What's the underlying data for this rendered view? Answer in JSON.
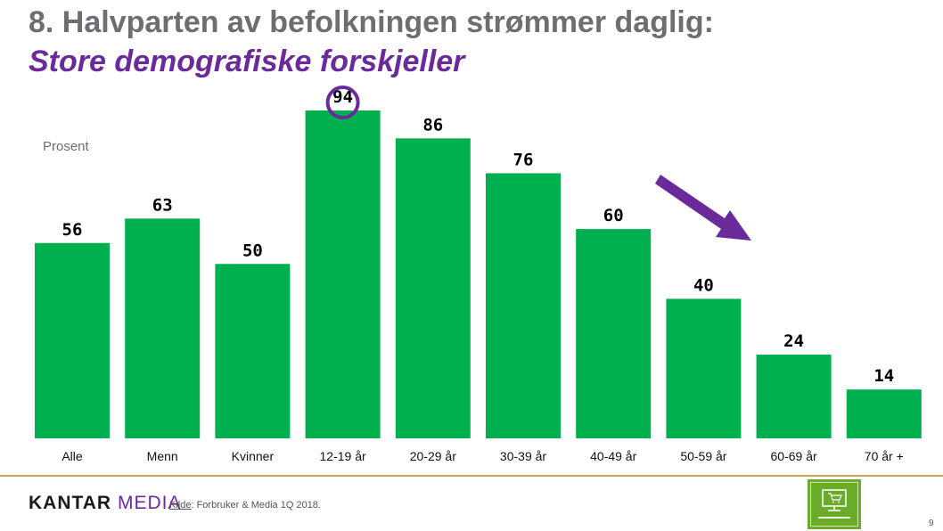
{
  "slide": {
    "title": "8. Halvparten av befolkningen strømmer daglig:",
    "subtitle": "Store demografiske forskjeller",
    "unit_label": "Prosent",
    "page_number": "9"
  },
  "footer": {
    "brand_primary": "KANTAR",
    "brand_secondary": "MEDIA",
    "source_label": "Kilde",
    "source_text": ": Forbruker & Media 1Q 2018.",
    "badge_icon": "monitor-cart-icon"
  },
  "colors": {
    "bar": "#00b04f",
    "highlight": "#6a2a9b",
    "arrow": "#6a2a9b",
    "title": "#6d6e71",
    "subtitle": "#6a2a9b",
    "rule": "#c9a64b",
    "badge": "#6aab2a"
  },
  "chart_data": {
    "type": "bar",
    "categories": [
      "Alle",
      "Menn",
      "Kvinner",
      "12-19 år",
      "20-29 år",
      "30-39 år",
      "40-49 år",
      "50-59 år",
      "60-69 år",
      "70 år +"
    ],
    "values": [
      56,
      63,
      50,
      94,
      86,
      76,
      60,
      40,
      24,
      14
    ],
    "ylim": [
      0,
      100
    ],
    "ylabel": "Prosent",
    "grid": false,
    "highlighted_category": "12-19 år",
    "annotation": "downward-trend-arrow"
  }
}
